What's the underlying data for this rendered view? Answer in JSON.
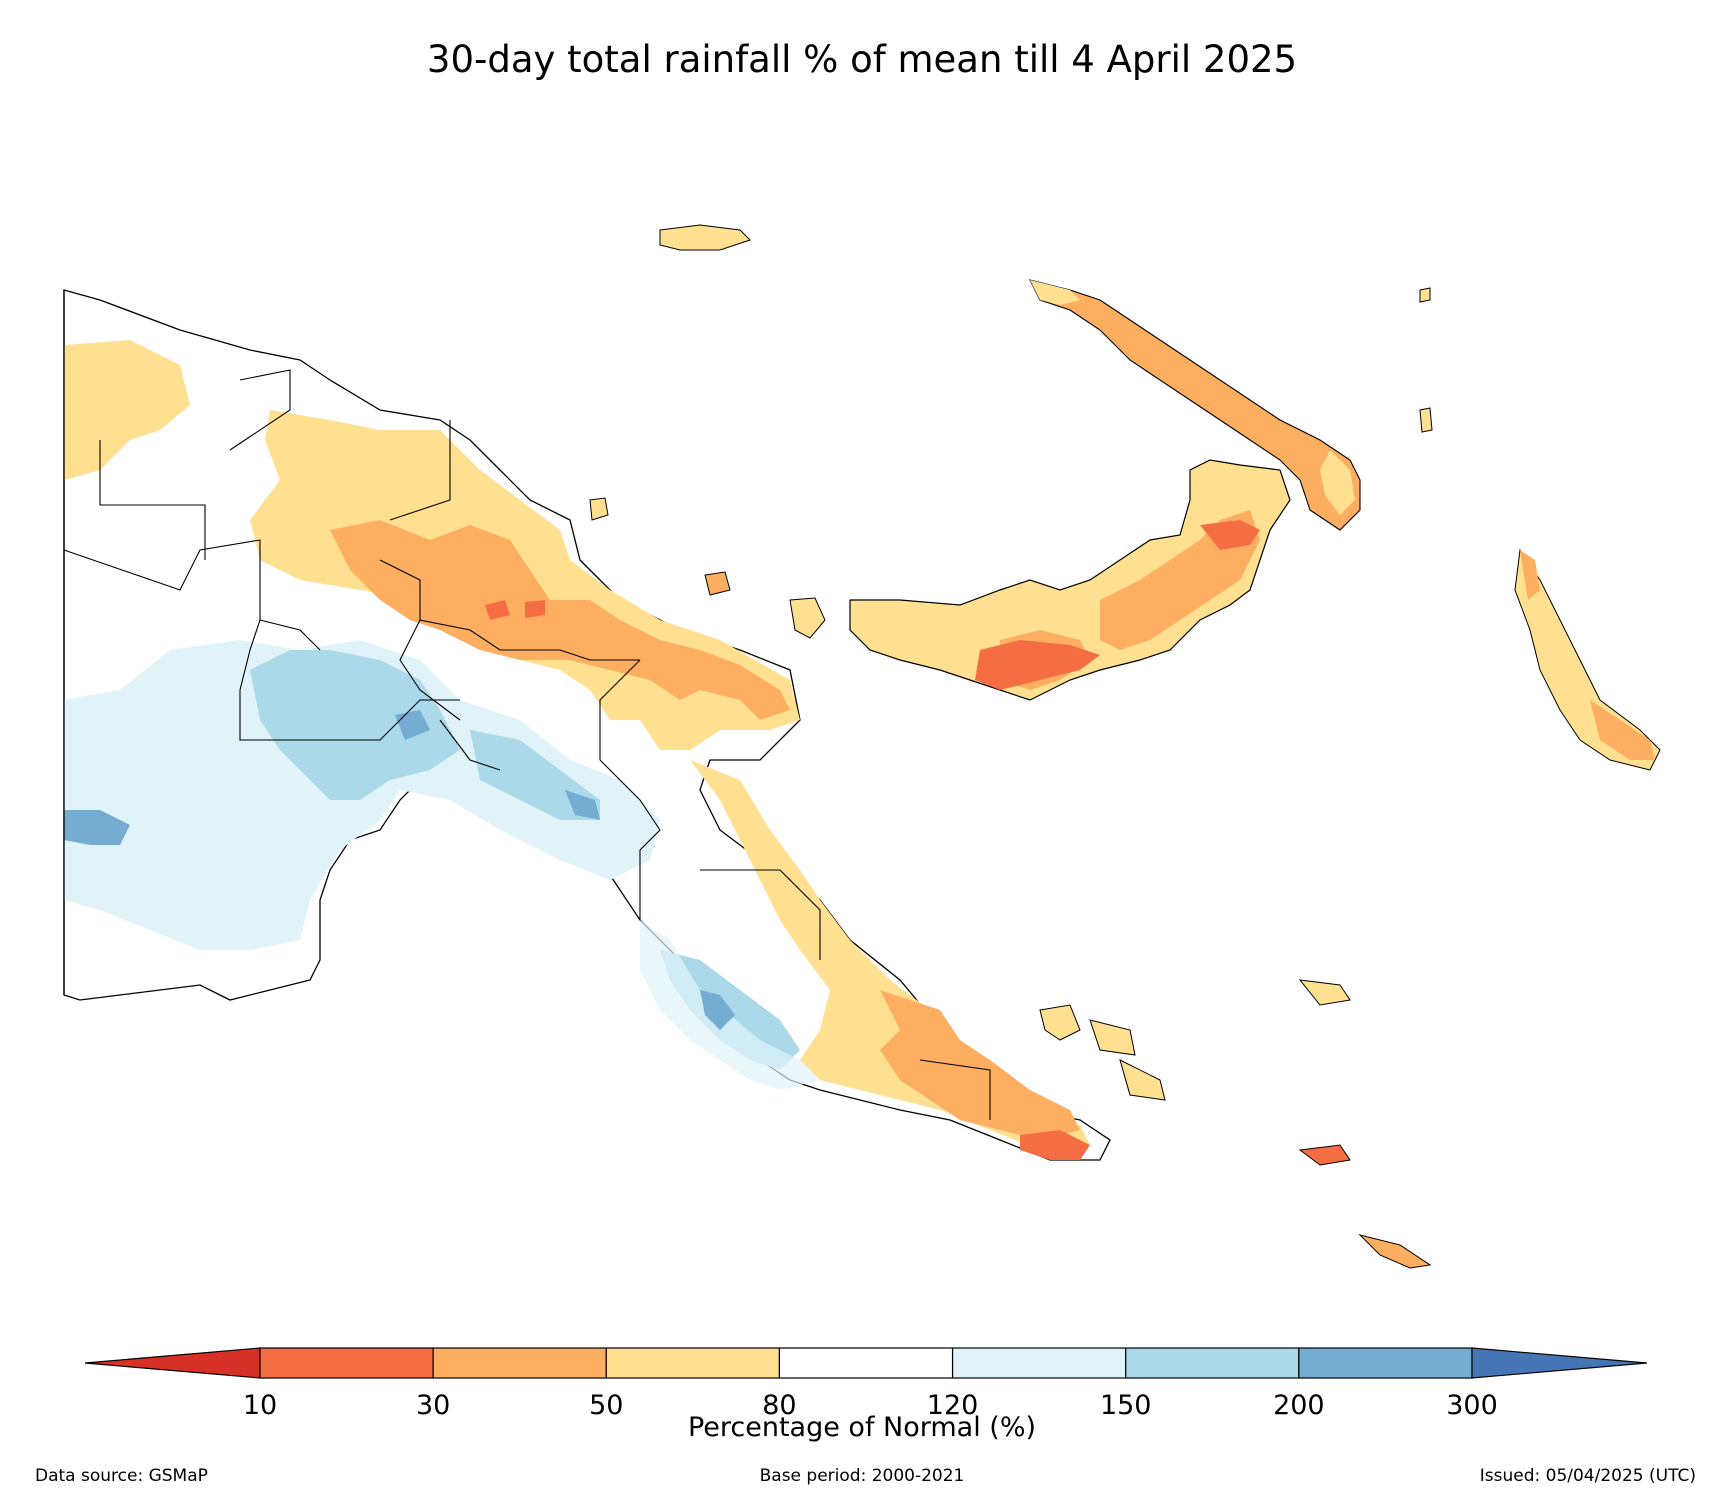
{
  "title": "30-day total rainfall % of mean till 4 April 2025",
  "legend": {
    "title": "Percentage of Normal (%)",
    "ticks": [
      "10",
      "30",
      "50",
      "80",
      "120",
      "150",
      "200",
      "300"
    ],
    "bins": [
      {
        "range": "<10",
        "color": "#d73027"
      },
      {
        "range": "10-30",
        "color": "#f46d43"
      },
      {
        "range": "30-50",
        "color": "#fdae61"
      },
      {
        "range": "50-80",
        "color": "#fee090"
      },
      {
        "range": "80-120",
        "color": "#ffffff"
      },
      {
        "range": "120-150",
        "color": "#e0f3f8"
      },
      {
        "range": "150-200",
        "color": "#abd9e9"
      },
      {
        "range": "200-300",
        "color": "#74add1"
      },
      {
        "range": ">300",
        "color": "#4575b4"
      }
    ]
  },
  "footer": {
    "source": "Data source: GSMaP",
    "base_period": "Base period: 2000-2021",
    "issued": "Issued: 05/04/2025 (UTC)"
  }
}
